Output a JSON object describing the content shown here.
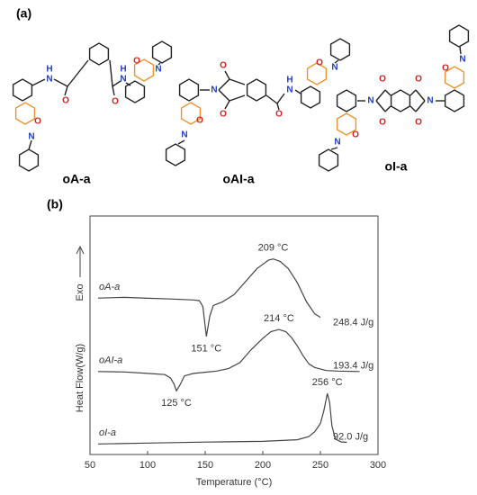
{
  "panel_labels": [
    "(a)",
    "(b)"
  ],
  "structures": [
    {
      "label": "oA-a",
      "atoms": [
        "N",
        "H",
        "O",
        "O",
        "N",
        "H",
        "O",
        "N",
        "O",
        "N"
      ]
    },
    {
      "label": "oAI-a",
      "atoms": [
        "O",
        "N",
        "O",
        "O",
        "N",
        "H",
        "O",
        "N",
        "O",
        "N"
      ]
    },
    {
      "label": "oI-a",
      "atoms": [
        "O",
        "O",
        "N",
        "O",
        "O",
        "N",
        "O",
        "N",
        "O",
        "N"
      ]
    }
  ],
  "chart_data": {
    "type": "line",
    "x_label": "Temperature (°C)",
    "y_label": "Heat Flow(W/g)",
    "direction_label": "Exo",
    "xlim": [
      50,
      300
    ],
    "xticks": [
      50,
      100,
      150,
      200,
      250,
      300
    ],
    "ylim": [
      0,
      100
    ],
    "color": "#444",
    "series": [
      {
        "name": "oA-a",
        "peak_labels": [
          "151 °C",
          "209 °C"
        ],
        "enthalpy": "248.4 J/g",
        "x": [
          57,
          80,
          100,
          120,
          140,
          145,
          148,
          151,
          154,
          157,
          165,
          175,
          185,
          195,
          205,
          209,
          215,
          222,
          230,
          238,
          245,
          250
        ],
        "values": [
          65.6,
          65.9,
          65.5,
          65.2,
          64.8,
          64.5,
          62,
          49.5,
          58,
          62.5,
          64,
          67,
          72.5,
          78,
          81.5,
          82,
          81,
          78,
          72,
          64,
          59,
          57.5
        ]
      },
      {
        "name": "oAI-a",
        "peak_labels": [
          "125 °C",
          "214 °C"
        ],
        "enthalpy": "193.4 J/g",
        "x": [
          57,
          80,
          100,
          115,
          120,
          123,
          125,
          128,
          132,
          140,
          150,
          160,
          170,
          180,
          190,
          200,
          207,
          214,
          220,
          225,
          230,
          235,
          240,
          245,
          255,
          265,
          284
        ],
        "values": [
          34.8,
          34.6,
          34,
          33.5,
          32,
          29.5,
          26.7,
          29,
          33,
          34,
          34.5,
          35,
          36,
          38.5,
          44,
          48.7,
          51.5,
          52.4,
          51.5,
          49,
          45.5,
          41.4,
          38,
          36.5,
          35.2,
          35,
          34.8
        ]
      },
      {
        "name": "oI-a",
        "peak_labels": [
          "256 °C"
        ],
        "enthalpy": "92.0 J/g",
        "x": [
          57,
          100,
          150,
          200,
          230,
          240,
          245,
          250,
          253,
          256,
          258,
          260,
          263,
          268,
          273
        ],
        "values": [
          4.4,
          4.8,
          5.2,
          5.5,
          6.2,
          7.5,
          9.5,
          13,
          18.3,
          25.6,
          22,
          12,
          6.5,
          5.3,
          5.1
        ]
      }
    ]
  }
}
